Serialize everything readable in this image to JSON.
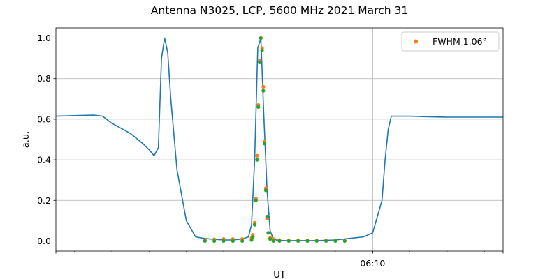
{
  "chart_data": {
    "type": "line",
    "title": "Antenna N3025, LCP, 5600 MHz 2021 March 31",
    "xlabel": "UT",
    "ylabel": "a.u.",
    "ylim": [
      -0.05,
      1.05
    ],
    "xlim": [
      "06:01:30",
      "06:13:30"
    ],
    "yticks": [
      "0.0",
      "0.2",
      "0.4",
      "0.6",
      "0.8",
      "1.0"
    ],
    "xtick_labels": [
      "06:10"
    ],
    "grid": true,
    "legend_position": "upper right",
    "colors": {
      "trace": "#1f77b4",
      "fwhm": "#ff7f0e",
      "fit": "#2ca02c"
    },
    "series": [
      {
        "style": "line",
        "x": [
          "06:01:30",
          "06:02:30",
          "06:02:45",
          "06:03:00",
          "06:03:30",
          "06:03:50",
          "06:04:00",
          "06:04:08",
          "06:04:15",
          "06:04:20",
          "06:04:25",
          "06:04:30",
          "06:04:35",
          "06:04:45",
          "06:05:00",
          "06:05:15",
          "06:05:30",
          "06:05:45",
          "06:06:00",
          "06:06:15",
          "06:06:30",
          "06:06:40",
          "06:06:45",
          "06:06:50",
          "06:06:55",
          "06:07:00",
          "06:07:05",
          "06:07:10",
          "06:07:15",
          "06:07:20",
          "06:07:25",
          "06:07:30",
          "06:07:40",
          "06:08:00",
          "06:08:30",
          "06:09:00",
          "06:09:30",
          "06:09:45",
          "06:10:00",
          "06:10:15",
          "06:10:20",
          "06:10:25",
          "06:10:30",
          "06:11:00",
          "06:11:30",
          "06:12:00",
          "06:12:30",
          "06:13:00",
          "06:13:30"
        ],
        "y": [
          0.615,
          0.62,
          0.615,
          0.58,
          0.53,
          0.48,
          0.45,
          0.42,
          0.46,
          0.9,
          1.0,
          0.93,
          0.7,
          0.35,
          0.1,
          0.02,
          0.012,
          0.008,
          0.005,
          0.005,
          0.01,
          0.02,
          0.08,
          0.4,
          0.95,
          1.0,
          0.6,
          0.25,
          0.05,
          0.01,
          0.005,
          0.003,
          0.002,
          0.002,
          0.002,
          0.005,
          0.015,
          0.02,
          0.04,
          0.2,
          0.4,
          0.55,
          0.615,
          0.615,
          0.612,
          0.61,
          0.61,
          0.61,
          0.61
        ]
      },
      {
        "name": "FWHM 1.06$^\\circ$",
        "style": "scatter",
        "x": [
          "06:05:30",
          "06:05:45",
          "06:06:00",
          "06:06:15",
          "06:06:30",
          "06:06:45",
          "06:06:47",
          "06:06:50",
          "06:06:52",
          "06:06:54",
          "06:06:56",
          "06:06:58",
          "06:07:00",
          "06:07:02",
          "06:07:04",
          "06:07:06",
          "06:07:08",
          "06:07:10",
          "06:07:12",
          "06:07:15",
          "06:07:20",
          "06:07:30",
          "06:07:45",
          "06:08:00",
          "06:08:15",
          "06:08:30",
          "06:08:45",
          "06:09:00",
          "06:09:15"
        ],
        "y": [
          0.005,
          0.008,
          0.01,
          0.01,
          0.01,
          0.015,
          0.03,
          0.09,
          0.21,
          0.42,
          0.67,
          0.89,
          1.0,
          0.95,
          0.76,
          0.49,
          0.26,
          0.11,
          0.04,
          0.015,
          0.01,
          0.005,
          0.002,
          0.002,
          0.002,
          0.002,
          0.002,
          0.002,
          0.002
        ]
      },
      {
        "style": "scatter",
        "x": [
          "06:05:30",
          "06:05:45",
          "06:06:00",
          "06:06:15",
          "06:06:30",
          "06:06:45",
          "06:06:47",
          "06:06:50",
          "06:06:52",
          "06:06:54",
          "06:06:56",
          "06:06:58",
          "06:07:00",
          "06:07:02",
          "06:07:04",
          "06:07:06",
          "06:07:08",
          "06:07:10",
          "06:07:12",
          "06:07:15",
          "06:07:20",
          "06:07:30",
          "06:07:45",
          "06:08:00",
          "06:08:15",
          "06:08:30",
          "06:08:45",
          "06:09:00",
          "06:09:15"
        ],
        "y": [
          0.0,
          0.0,
          0.0,
          0.0,
          0.0,
          0.005,
          0.02,
          0.08,
          0.2,
          0.4,
          0.66,
          0.88,
          1.0,
          0.94,
          0.74,
          0.48,
          0.25,
          0.12,
          0.04,
          0.01,
          0.0,
          0.0,
          0.0,
          0.0,
          0.0,
          0.0,
          0.0,
          0.0,
          0.0
        ]
      }
    ]
  }
}
